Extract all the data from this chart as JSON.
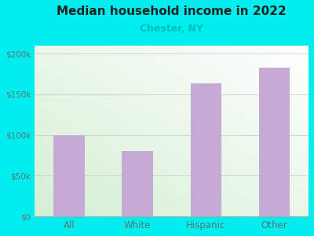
{
  "title": "Median household income in 2022",
  "subtitle": "Chester, NY",
  "categories": [
    "All",
    "White",
    "Hispanic",
    "Other"
  ],
  "values": [
    100000,
    80000,
    163000,
    183000
  ],
  "bar_color": "#c4aad4",
  "title_fontsize": 11,
  "subtitle_fontsize": 9,
  "subtitle_color": "#00bbbb",
  "tick_label_color": "#557777",
  "background_color": "#00eeee",
  "ylim": [
    0,
    210000
  ],
  "yticks": [
    0,
    50000,
    100000,
    150000,
    200000
  ],
  "ytick_labels": [
    "$0",
    "$50k",
    "$100k",
    "$150k",
    "$200k"
  ]
}
